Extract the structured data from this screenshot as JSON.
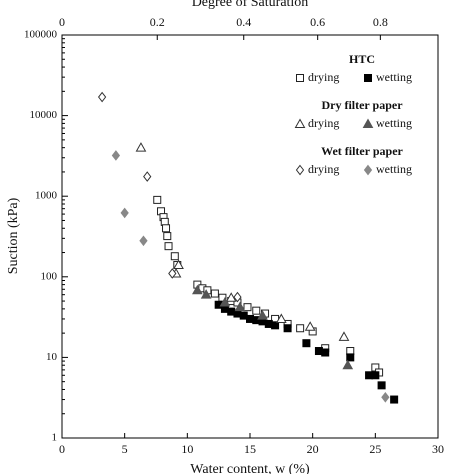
{
  "chart_data": {
    "type": "scatter",
    "x2label": "Degree of Saturation",
    "xlabel": "Water content, w (%)",
    "ylabel": "Suction (kPa)",
    "xlim": [
      0,
      30
    ],
    "xticks": [
      0,
      5,
      10,
      15,
      20,
      25,
      30
    ],
    "x2ticks": [
      {
        "value": 0,
        "label": "0"
      },
      {
        "value": 7.6,
        "label": "0.2"
      },
      {
        "value": 14.5,
        "label": "0.4"
      },
      {
        "value": 20.4,
        "label": "0.6"
      },
      {
        "value": 25.4,
        "label": "0.8"
      }
    ],
    "ylim": [
      1,
      100000
    ],
    "yticks": [
      1,
      10,
      100,
      1000,
      10000,
      100000
    ],
    "log_y": true,
    "groups": [
      {
        "title": "HTC",
        "series": [
          {
            "name": "drying",
            "marker": "square",
            "filled": false,
            "color": "#222",
            "x": [
              7.6,
              7.9,
              8.1,
              8.2,
              8.3,
              8.4,
              8.5,
              9.0,
              9.2,
              10.8,
              11.2,
              11.6,
              12.2,
              12.8,
              13.5,
              14.0,
              14.8,
              15.5,
              16.2,
              17.0,
              18.0,
              19.0,
              20.0,
              21.0,
              23.0,
              25.0,
              25.3
            ],
            "values": [
              900,
              650,
              550,
              480,
              400,
              320,
              240,
              180,
              140,
              80,
              72,
              68,
              62,
              55,
              50,
              48,
              42,
              38,
              35,
              30,
              26,
              23,
              21,
              13,
              12,
              7.5,
              6.5
            ]
          },
          {
            "name": "wetting",
            "marker": "square",
            "filled": true,
            "color": "#000",
            "x": [
              12.5,
              13.0,
              13.5,
              14.0,
              14.5,
              15.0,
              15.5,
              16.0,
              16.5,
              17.0,
              18.0,
              19.5,
              20.5,
              21.0,
              23.0,
              24.5,
              25.0,
              25.5,
              26.5
            ],
            "values": [
              45,
              40,
              37,
              35,
              33,
              30,
              29,
              28,
              26,
              25,
              23,
              15,
              12,
              11.5,
              10,
              6,
              6,
              4.5,
              3
            ]
          }
        ]
      },
      {
        "title": "Dry filter paper",
        "series": [
          {
            "name": "drying",
            "marker": "triangle",
            "filled": false,
            "color": "#333",
            "x": [
              6.3,
              9.3,
              9.1,
              13.5,
              17.5,
              19.8,
              22.5
            ],
            "values": [
              4000,
              140,
              110,
              55,
              30,
              24,
              18
            ]
          },
          {
            "name": "wetting",
            "marker": "triangle",
            "filled": true,
            "color": "#555",
            "x": [
              10.8,
              11.5,
              13.0,
              14.2,
              16.0,
              22.8
            ],
            "values": [
              68,
              60,
              48,
              42,
              33,
              8
            ]
          }
        ]
      },
      {
        "title": "Wet filter paper",
        "series": [
          {
            "name": "drying",
            "marker": "diamond",
            "filled": false,
            "color": "#333",
            "x": [
              3.2,
              6.8,
              8.8,
              14.0
            ],
            "values": [
              17000,
              1750,
              110,
              56
            ]
          },
          {
            "name": "wetting",
            "marker": "diamond",
            "filled": true,
            "color": "#888",
            "x": [
              4.3,
              5.0,
              6.5,
              25.8
            ],
            "values": [
              3200,
              620,
              280,
              3.2
            ]
          }
        ]
      }
    ]
  }
}
